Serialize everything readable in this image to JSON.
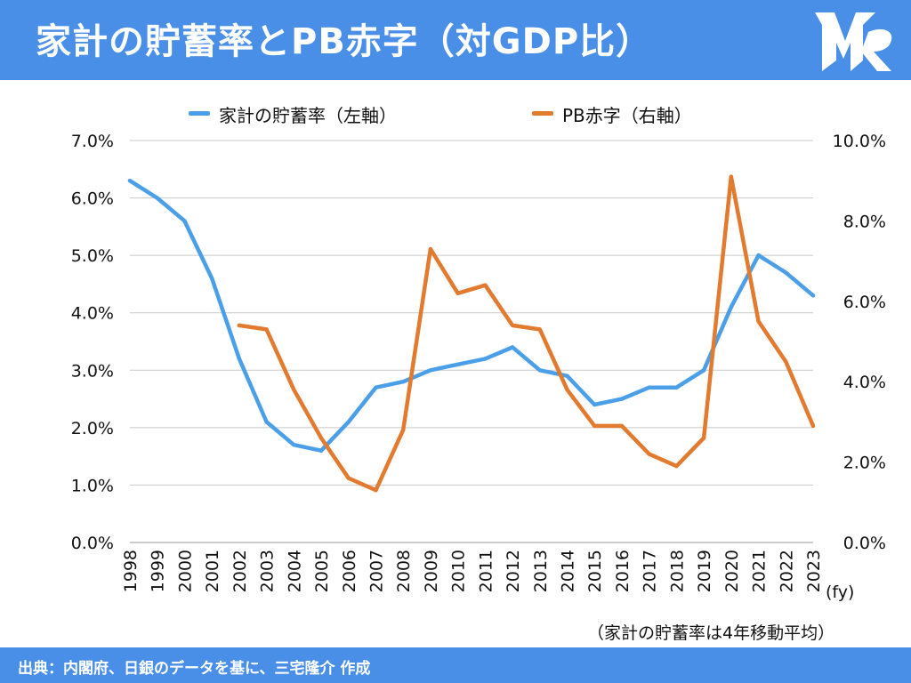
{
  "header": {
    "title": "家計の貯蓄率とPB赤字（対GDP比）"
  },
  "logo": {
    "icon": "mr-logo-icon",
    "color": "#ffffff"
  },
  "footer": {
    "text": "出典：内閣府、日銀のデータを基に、三宅隆介 作成"
  },
  "note": "（家計の貯蓄率は4年移動平均）",
  "chart_data": {
    "type": "line",
    "title": "",
    "x_unit_label": "(fy)",
    "categories": [
      "1998",
      "1999",
      "2000",
      "2001",
      "2002",
      "2003",
      "2004",
      "2005",
      "2006",
      "2007",
      "2008",
      "2009",
      "2010",
      "2011",
      "2012",
      "2013",
      "2014",
      "2015",
      "2016",
      "2017",
      "2018",
      "2019",
      "2020",
      "2021",
      "2022",
      "2023"
    ],
    "left_axis": {
      "ylim": [
        0,
        7
      ],
      "ticks": [
        "0.0%",
        "1.0%",
        "2.0%",
        "3.0%",
        "4.0%",
        "5.0%",
        "6.0%",
        "7.0%"
      ]
    },
    "right_axis": {
      "ylim": [
        0,
        10
      ],
      "ticks": [
        "0.0%",
        "2.0%",
        "4.0%",
        "6.0%",
        "8.0%",
        "10.0%"
      ]
    },
    "grid": true,
    "legend_position": "top",
    "series": [
      {
        "name": "家計の貯蓄率（左軸）",
        "axis": "left",
        "color": "#4b9fe8",
        "values": [
          6.3,
          6.0,
          5.6,
          4.6,
          3.2,
          2.1,
          1.7,
          1.6,
          2.1,
          2.7,
          2.8,
          3.0,
          3.1,
          3.2,
          3.4,
          3.0,
          2.9,
          2.4,
          2.5,
          2.7,
          2.7,
          3.0,
          4.1,
          5.0,
          4.7,
          4.3
        ]
      },
      {
        "name": "PB赤字（右軸）",
        "axis": "right",
        "color": "#e27a2f",
        "values": [
          null,
          null,
          null,
          null,
          5.4,
          5.3,
          3.8,
          2.6,
          1.6,
          1.3,
          2.8,
          7.3,
          6.2,
          6.4,
          5.4,
          5.3,
          3.8,
          2.9,
          2.9,
          2.2,
          1.9,
          2.6,
          9.1,
          5.5,
          4.5,
          2.9
        ]
      }
    ]
  }
}
